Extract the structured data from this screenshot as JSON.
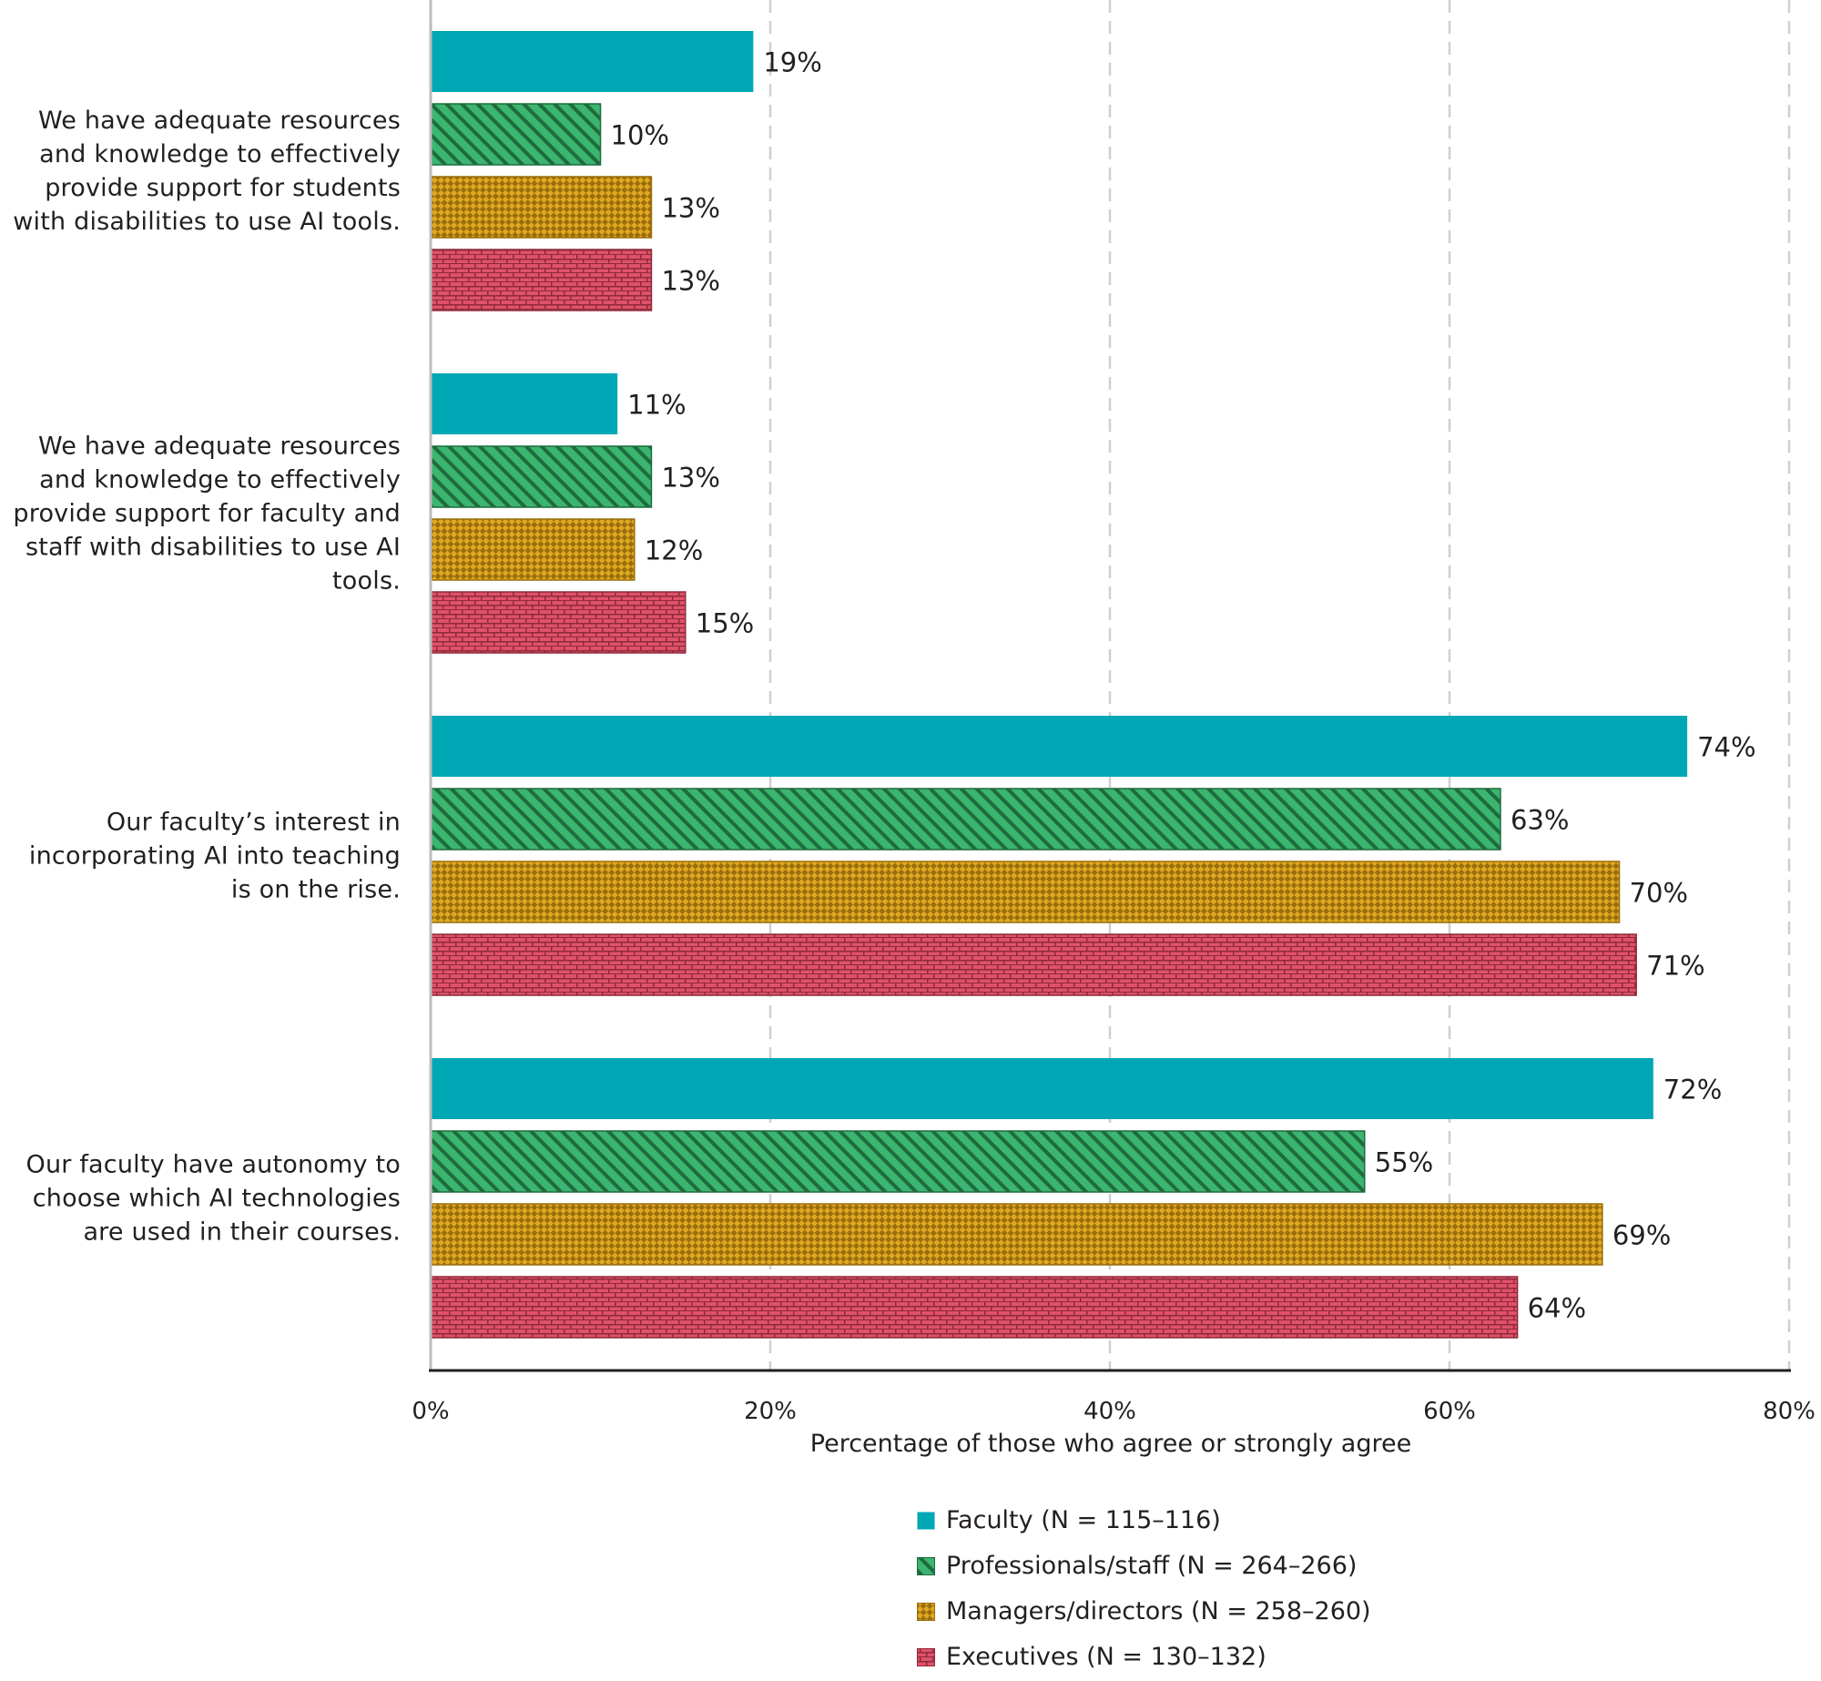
{
  "chart_data": {
    "type": "bar",
    "orientation": "horizontal",
    "categories": [
      "We have adequate resources and knowledge to effectively provide support for students with disabilities to use AI tools.",
      "We have adequate resources and knowledge to effectively provide support for faculty and staff with disabilities to use AI tools.",
      "Our faculty’s interest in incorporating AI into teaching is on the rise.",
      "Our faculty have autonomy to choose which AI technologies are used in their courses."
    ],
    "series": [
      {
        "name": "Faculty (N = 115–116)",
        "values": [
          19,
          11,
          74,
          72
        ],
        "color": "#00a7b5",
        "pattern": "solid"
      },
      {
        "name": "Professionals/staff (N = 264–266)",
        "values": [
          10,
          13,
          63,
          55
        ],
        "color": "#3bb56f",
        "pattern": "diagonal-hatch"
      },
      {
        "name": "Managers/directors (N = 258–260)",
        "values": [
          13,
          12,
          70,
          69
        ],
        "color": "#e0a820",
        "pattern": "checker"
      },
      {
        "name": "Executives (N = 130–132)",
        "values": [
          13,
          15,
          71,
          64
        ],
        "color": "#e0516a",
        "pattern": "brick"
      }
    ],
    "value_suffix": "%",
    "xlabel": "Percentage of those who agree or strongly agree",
    "xlim": [
      0,
      80
    ],
    "xticks": [
      "0%",
      "20%",
      "40%",
      "60%",
      "80%"
    ],
    "grid": "vertical dashed",
    "legend_position": "bottom"
  }
}
